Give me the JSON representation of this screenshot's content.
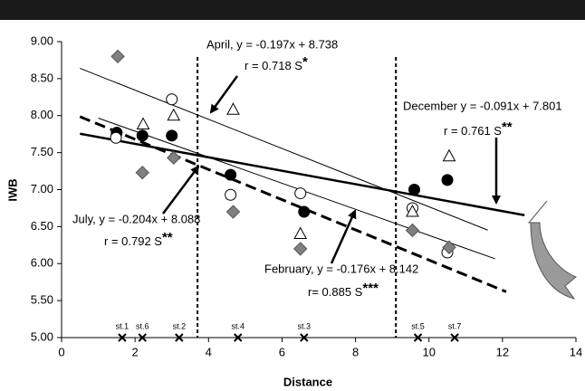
{
  "chart_data": {
    "type": "scatter",
    "xlabel": "Distance",
    "ylabel": "IWB",
    "xlim": [
      0,
      14
    ],
    "xticks": [
      0,
      2,
      4,
      6,
      8,
      10,
      12,
      14
    ],
    "ylim": [
      5,
      9
    ],
    "yticks": [
      {
        "value": 5,
        "label": "5.00"
      },
      {
        "value": 5.5,
        "label": "5.50"
      },
      {
        "value": 6,
        "label": "6.00"
      },
      {
        "value": 6.5,
        "label": "6.50"
      },
      {
        "value": 7,
        "label": "7.00"
      },
      {
        "value": 7.5,
        "label": "7.50"
      },
      {
        "value": 8,
        "label": "8.00"
      },
      {
        "value": 8.5,
        "label": "8.50"
      },
      {
        "value": 9,
        "label": "9.00"
      }
    ],
    "series": [
      {
        "marker": "circle-filled",
        "color": "#000000",
        "x": [
          1.5,
          2.2,
          3.0,
          4.6,
          6.6,
          9.6,
          10.5
        ],
        "values": [
          7.77,
          7.73,
          7.73,
          7.2,
          6.7,
          7.0,
          7.13
        ]
      },
      {
        "marker": "circle-open",
        "color": "#ffffff",
        "x": [
          1.48,
          3.0,
          4.6,
          6.5,
          9.55,
          10.5
        ],
        "values": [
          7.7,
          8.22,
          6.93,
          6.95,
          6.75,
          6.15
        ]
      },
      {
        "marker": "triangle-open",
        "color": "#ffffff",
        "x": [
          2.22,
          3.05,
          4.67,
          6.5,
          9.55,
          10.55
        ],
        "values": [
          7.88,
          8.0,
          8.08,
          6.4,
          6.7,
          7.45
        ]
      },
      {
        "marker": "diamond",
        "color": "#808080",
        "x": [
          1.53,
          2.2,
          3.05,
          4.67,
          6.5,
          9.55,
          10.55
        ],
        "values": [
          8.8,
          7.23,
          7.43,
          6.7,
          6.2,
          6.45,
          6.22
        ]
      }
    ],
    "vlines": [
      3.7,
      9.1
    ],
    "stations": [
      {
        "label": "st.1",
        "x": 1.65
      },
      {
        "label": "st.6",
        "x": 2.2
      },
      {
        "label": "st.2",
        "x": 3.2
      },
      {
        "label": "st.4",
        "x": 4.8
      },
      {
        "label": "st.3",
        "x": 6.6
      },
      {
        "label": "st.5",
        "x": 9.7
      },
      {
        "label": "st.7",
        "x": 10.7
      }
    ],
    "regressions": [
      {
        "label": "April, y = -0.197x + 8.738",
        "r": "r = 0.718  S",
        "stars": "*",
        "slope": -0.197,
        "intercept": 8.738,
        "x_range": [
          0.5,
          11.6
        ],
        "style": "thin"
      },
      {
        "label": "December y = -0.091x + 7.801",
        "r": "r = 0.761  S",
        "stars": "**",
        "slope": -0.091,
        "intercept": 7.801,
        "x_range": [
          0.5,
          12.6
        ],
        "style": "thick"
      },
      {
        "label": "July, y = -0.204x + 8.088",
        "r": "r = 0.792  S",
        "stars": "**",
        "slope": -0.204,
        "intercept": 8.088,
        "x_range": [
          0.5,
          12.1
        ],
        "style": "dashed"
      },
      {
        "label": "February, y = -0.176x + 8.142",
        "r": "r= 0.885  S",
        "stars": "***",
        "slope": -0.176,
        "intercept": 8.142,
        "x_range": [
          1.0,
          11.8
        ],
        "style": "thin"
      }
    ]
  }
}
